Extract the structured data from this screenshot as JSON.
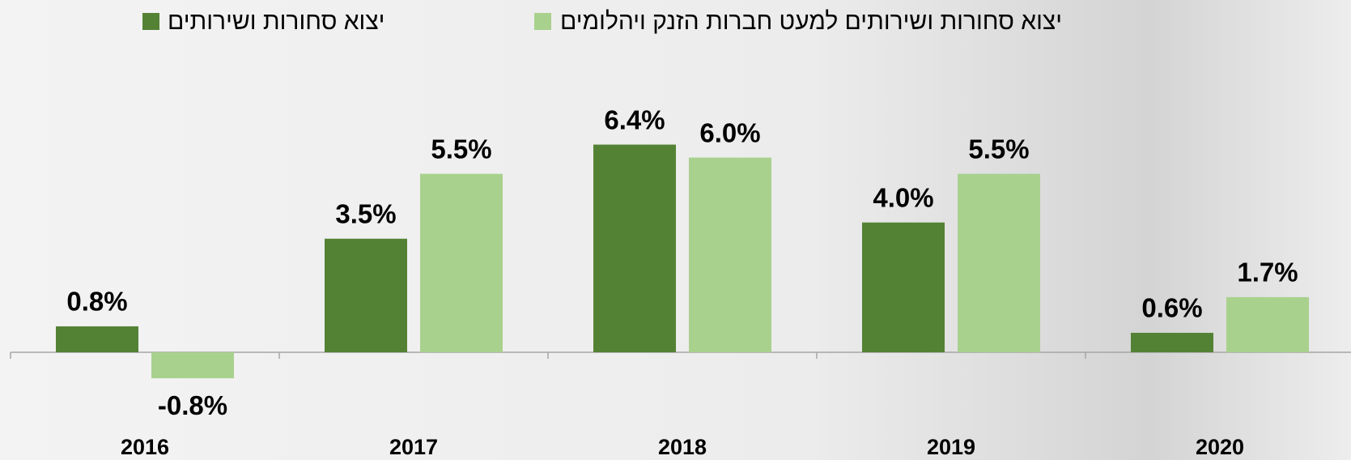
{
  "chart_data": {
    "type": "bar",
    "categories": [
      "2016",
      "2017",
      "2018",
      "2019",
      "2020"
    ],
    "series": [
      {
        "name": "יצוא סחורות ושירותים",
        "color": "#548235",
        "values": [
          0.8,
          3.5,
          6.4,
          4.0,
          0.6
        ],
        "value_labels": [
          "0.8%",
          "3.5%",
          "6.4%",
          "4.0%",
          "0.6%"
        ]
      },
      {
        "name": "יצוא סחורות ושירותים למעט חברות הזנק ויהלומים",
        "color": "#a9d18e",
        "values": [
          -0.8,
          5.5,
          6.0,
          5.5,
          1.7
        ],
        "value_labels": [
          "-0.8%",
          "5.5%",
          "6.0%",
          "5.5%",
          "1.7%"
        ]
      }
    ]
  }
}
